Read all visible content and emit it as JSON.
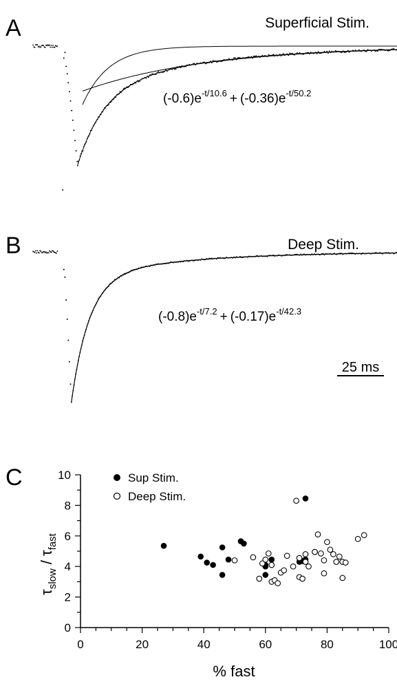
{
  "panels": {
    "A": {
      "letter": "A",
      "title": "Superficial Stim.",
      "equation": {
        "c1": "(-0.6)e",
        "e1": "-t/10.6",
        "plus": "+",
        "c2": "(-0.36)e",
        "e2": "-t/50.2"
      }
    },
    "B": {
      "letter": "B",
      "title": "Deep Stim.",
      "equation": {
        "c1": "(-0.8)e",
        "e1": "-t/7.2",
        "plus": "+",
        "c2": "(-0.17)e",
        "e2": "-t/42.3"
      },
      "scale_bar": "25 ms"
    },
    "C": {
      "letter": "C"
    }
  },
  "chart_data": [
    {
      "type": "line",
      "panel": "A",
      "title": "Superficial Stim.",
      "time_ms": {
        "baseline_start": -12,
        "stim": 0,
        "peak": 6,
        "end": 140
      },
      "fit": {
        "a_fast": -0.6,
        "tau_fast": 10.6,
        "a_slow": -0.36,
        "tau_slow": 50.2
      },
      "grid": false
    },
    {
      "type": "line",
      "panel": "B",
      "title": "Deep Stim.",
      "time_ms": {
        "baseline_start": -12,
        "stim": 0,
        "peak": 3.5,
        "end": 140
      },
      "fit": {
        "a_fast": -0.8,
        "tau_fast": 7.2,
        "a_slow": -0.17,
        "tau_slow": 42.3
      },
      "scale_bar_ms": 25,
      "grid": false
    },
    {
      "type": "scatter",
      "panel": "C",
      "xlabel": "% fast",
      "ylabel_main": "τ",
      "ylabel_sub1": "slow",
      "ylabel_sep": "/",
      "ylabel_sub2": "fast",
      "xlim": [
        0,
        100
      ],
      "ylim": [
        0,
        10
      ],
      "xticks": [
        0,
        20,
        40,
        60,
        80,
        100
      ],
      "yticks": [
        0,
        2,
        4,
        6,
        8,
        10
      ],
      "legend_position": "top-left",
      "grid": false,
      "series": [
        {
          "name": "Sup Stim.",
          "marker": "filled",
          "points": [
            [
              27,
              5.35
            ],
            [
              39,
              4.65
            ],
            [
              41,
              4.25
            ],
            [
              43,
              4.1
            ],
            [
              46,
              5.25
            ],
            [
              46,
              3.45
            ],
            [
              48,
              4.45
            ],
            [
              52,
              5.65
            ],
            [
              53,
              5.5
            ],
            [
              60,
              4.1
            ],
            [
              60,
              3.45
            ],
            [
              60,
              4.0
            ],
            [
              62,
              4.45
            ],
            [
              71,
              4.3
            ],
            [
              72,
              4.35
            ],
            [
              73,
              8.45
            ],
            [
              73,
              4.45
            ],
            [
              76,
              4.95
            ]
          ]
        },
        {
          "name": "Deep Stim.",
          "marker": "open",
          "points": [
            [
              50,
              4.4
            ],
            [
              56,
              4.6
            ],
            [
              58,
              3.2
            ],
            [
              59,
              4.2
            ],
            [
              60,
              4.45
            ],
            [
              61,
              4.85
            ],
            [
              62,
              3.0
            ],
            [
              62,
              4.1
            ],
            [
              63,
              3.1
            ],
            [
              64,
              2.9
            ],
            [
              65,
              3.6
            ],
            [
              66,
              3.75
            ],
            [
              67,
              4.7
            ],
            [
              69,
              4.0
            ],
            [
              70,
              8.3
            ],
            [
              71,
              4.55
            ],
            [
              71,
              3.3
            ],
            [
              72,
              3.2
            ],
            [
              73,
              4.8
            ],
            [
              73,
              4.3
            ],
            [
              74,
              4.0
            ],
            [
              76,
              4.95
            ],
            [
              77,
              6.1
            ],
            [
              78,
              4.85
            ],
            [
              79,
              4.4
            ],
            [
              79,
              3.55
            ],
            [
              80,
              5.6
            ],
            [
              81,
              5.1
            ],
            [
              82,
              4.8
            ],
            [
              83,
              4.3
            ],
            [
              84,
              4.65
            ],
            [
              85,
              4.3
            ],
            [
              85,
              3.25
            ],
            [
              86,
              4.25
            ],
            [
              90,
              5.8
            ],
            [
              92,
              6.05
            ]
          ]
        }
      ]
    }
  ]
}
